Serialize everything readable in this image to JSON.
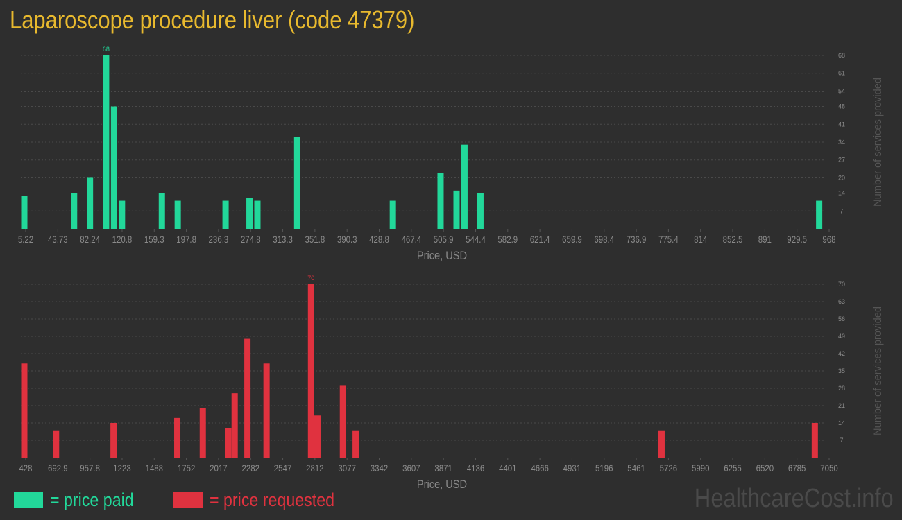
{
  "title": "Laparoscope procedure liver (code 47379)",
  "colors": {
    "paid": "#22d89a",
    "requested": "#e0323f",
    "title": "#e8b92e",
    "axis_text": "#8a8a8a"
  },
  "legend": {
    "paid": "= price paid",
    "requested": "= price requested"
  },
  "watermark": "HealthcareCost.info",
  "chart_data": [
    {
      "type": "bar",
      "series": [
        {
          "name": "price paid",
          "color": "#22d89a"
        }
      ],
      "xlabel": "Price, USD",
      "ylabel": "Number of services provided",
      "x_ticks": [
        "5.22",
        "43.73",
        "82.24",
        "120.8",
        "159.3",
        "197.8",
        "236.3",
        "274.8",
        "313.3",
        "351.8",
        "390.3",
        "428.8",
        "467.4",
        "505.9",
        "544.4",
        "582.9",
        "621.4",
        "659.9",
        "698.4",
        "736.9",
        "775.4",
        "814",
        "852.5",
        "891",
        "929.5",
        "968"
      ],
      "y_ticks": [
        7,
        14,
        20,
        27,
        34,
        41,
        48,
        54,
        61,
        68
      ],
      "xlim": [
        5.22,
        968
      ],
      "ylim": [
        0,
        68
      ],
      "max_label": "68",
      "grid": true,
      "bars": [
        {
          "x": 5.22,
          "y": 13
        },
        {
          "x": 65.4,
          "y": 14
        },
        {
          "x": 84.6,
          "y": 20
        },
        {
          "x": 104.1,
          "y": 68
        },
        {
          "x": 113.7,
          "y": 48
        },
        {
          "x": 123.3,
          "y": 11
        },
        {
          "x": 171.5,
          "y": 14
        },
        {
          "x": 190.7,
          "y": 11
        },
        {
          "x": 248.5,
          "y": 11
        },
        {
          "x": 277.4,
          "y": 12
        },
        {
          "x": 287.0,
          "y": 11
        },
        {
          "x": 335.1,
          "y": 36
        },
        {
          "x": 450.7,
          "y": 11
        },
        {
          "x": 508.4,
          "y": 22
        },
        {
          "x": 527.7,
          "y": 15
        },
        {
          "x": 537.3,
          "y": 33
        },
        {
          "x": 556.6,
          "y": 14
        },
        {
          "x": 966.0,
          "y": 11
        }
      ]
    },
    {
      "type": "bar",
      "series": [
        {
          "name": "price requested",
          "color": "#e0323f"
        }
      ],
      "xlabel": "Price, USD",
      "ylabel": "Number of services provided",
      "x_ticks": [
        "428",
        "692.9",
        "957.8",
        "1223",
        "1488",
        "1752",
        "2017",
        "2282",
        "2547",
        "2812",
        "3077",
        "3342",
        "3607",
        "3871",
        "4136",
        "4401",
        "4666",
        "4931",
        "5196",
        "5461",
        "5726",
        "5990",
        "6255",
        "6520",
        "6785",
        "7050"
      ],
      "y_ticks": [
        7,
        14,
        21,
        28,
        35,
        42,
        49,
        56,
        63,
        70
      ],
      "xlim": [
        428,
        7050
      ],
      "ylim": [
        0,
        70
      ],
      "max_label": "70",
      "grid": true,
      "bars": [
        {
          "x": 428,
          "y": 38
        },
        {
          "x": 692,
          "y": 11
        },
        {
          "x": 1170,
          "y": 14
        },
        {
          "x": 1700,
          "y": 16
        },
        {
          "x": 1912,
          "y": 20
        },
        {
          "x": 2124,
          "y": 12
        },
        {
          "x": 2177,
          "y": 26
        },
        {
          "x": 2283,
          "y": 48
        },
        {
          "x": 2442,
          "y": 38
        },
        {
          "x": 2812,
          "y": 70
        },
        {
          "x": 2865,
          "y": 17
        },
        {
          "x": 3077,
          "y": 29
        },
        {
          "x": 3183,
          "y": 11
        },
        {
          "x": 5726,
          "y": 11
        },
        {
          "x": 7000,
          "y": 14
        }
      ]
    }
  ]
}
